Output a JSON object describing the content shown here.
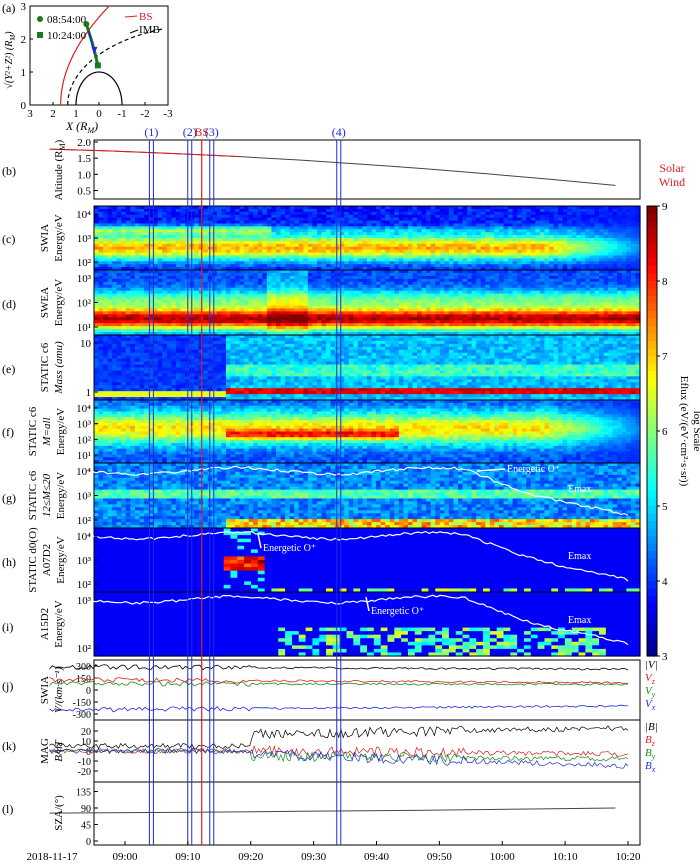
{
  "chart_data": {
    "type": "multi-panel spectrogram / line",
    "panel_letters": [
      "(a)",
      "(b)",
      "(c)",
      "(d)",
      "(e)",
      "(f)",
      "(g)",
      "(h)",
      "(i)",
      "(j)",
      "(k)",
      "(l)"
    ],
    "orbit_panel": {
      "legend": [
        {
          "marker": "circle",
          "label": "08:54:00"
        },
        {
          "marker": "square",
          "label": "10:24:00"
        }
      ],
      "labels": {
        "bs": "BS",
        "imb": "IMB"
      },
      "xlabel": "X (R",
      "xlabel_sub": "M",
      "ylabel": "√(Y²+Z²) (R",
      "ylabel_sub": "M",
      "x_ticks": [
        "3",
        "2",
        "1",
        "0",
        "-1",
        "-2",
        "-3"
      ],
      "y_ticks": [
        "0",
        "1",
        "2",
        "3"
      ],
      "track": [
        [
          0.55,
          2.45
        ],
        [
          0.3,
          1.9
        ],
        [
          0.15,
          1.5
        ],
        [
          0.05,
          1.2
        ]
      ]
    },
    "markers": [
      "(1)",
      "(2)",
      "BS",
      "(3)",
      "(4)"
    ],
    "time_axis": {
      "ticks": [
        "2018-11-17",
        "09:00",
        "09:10",
        "09:20",
        "09:30",
        "09:40",
        "09:50",
        "10:00",
        "10:10",
        "10:20"
      ],
      "tick_minutes": [
        0,
        6,
        16,
        26,
        36,
        46,
        56,
        66,
        76,
        86
      ]
    },
    "marker_minutes": [
      16.2,
      22.3,
      24.2,
      25.8,
      46.0
    ],
    "altitude": {
      "label": "Altitude (R",
      "label_sub": "M",
      "ticks": [
        "2.0",
        "1.5",
        "1.0",
        "0.5"
      ],
      "minutes": [
        0,
        10,
        20,
        30,
        40,
        50,
        60,
        70,
        80,
        90
      ],
      "values": [
        1.78,
        1.72,
        1.64,
        1.55,
        1.44,
        1.31,
        1.17,
        1.01,
        0.84,
        0.66
      ],
      "solar_wind_label": [
        "Solar",
        "Wind"
      ]
    },
    "spectrograms": [
      {
        "label1": "SWIA",
        "label2": "Energy/eV",
        "ticks": [
          "10⁴",
          "10³",
          "10²"
        ]
      },
      {
        "label1": "SWEA",
        "label2": "Energy/eV",
        "ticks": [
          "10³",
          "10²",
          "10¹"
        ]
      },
      {
        "label1": "STATIC c6",
        "label2": "Mass (amu)",
        "ticks": [
          "10",
          "1"
        ]
      },
      {
        "label1": "STATIC c6",
        "label2": "M=all",
        "label3": "Energy/eV",
        "ticks": [
          "10⁴",
          "10³",
          "10²",
          "10¹"
        ]
      },
      {
        "label1": "STATIC c6",
        "label2": "12≤M≤20",
        "label3": "Energy/eV",
        "ticks": [
          "10⁴",
          "10³",
          "10²"
        ],
        "annotations": [
          "Energetic O⁺",
          "Emax"
        ]
      },
      {
        "label1": "STATIC d0(O)",
        "label2": "A07D2",
        "label3": "Energy/eV",
        "ticks": [
          "10⁴",
          "10³",
          "10²"
        ],
        "annotations": [
          "Energetic O⁺",
          "Emax"
        ]
      },
      {
        "label1": "A15D2",
        "label2": "Energy/eV",
        "ticks": [
          "10³",
          "10²"
        ],
        "annotations": [
          "Energetic O⁺",
          "Emax"
        ]
      }
    ],
    "colorbar": {
      "range": [
        3,
        9
      ],
      "ticks": [
        "9",
        "8",
        "7",
        "6",
        "5",
        "4",
        "3"
      ],
      "label": "Eflux (eV/(eV·cm²·s·sr))",
      "sublabel": "log Scale"
    },
    "swia_velocity": {
      "label1": "SWIA",
      "label2": "V/(km·s⁻¹)",
      "ticks": [
        "300",
        "150",
        "0",
        "-150",
        "-300"
      ],
      "series": [
        {
          "name": "|V|",
          "color": "#000000",
          "level": 300
        },
        {
          "name": "Vₓ",
          "color": "#d81f1f",
          "level": 0
        },
        {
          "name": "Vᵧ",
          "color": "#1a8a1a",
          "level": 60
        },
        {
          "name": "Vₓx",
          "color": "#1f2bd8",
          "level": -300
        }
      ],
      "legend": [
        "|V|",
        "V",
        "V",
        "V"
      ],
      "legend_sub": [
        "",
        "z",
        "y",
        "x"
      ]
    },
    "mag": {
      "label1": "MAG",
      "label2": "B/nT",
      "ticks": [
        "20",
        "10",
        "0",
        "-10",
        "-20"
      ],
      "legend": [
        "|B|",
        "B",
        "B",
        "B"
      ],
      "legend_sub": [
        "",
        "z",
        "y",
        "x"
      ],
      "colors": [
        "#000000",
        "#d81f1f",
        "#1a8a1a",
        "#1f2bd8"
      ]
    },
    "sza": {
      "label": "SZA/(°)",
      "ticks": [
        "135",
        "90",
        "45",
        "0"
      ],
      "minutes": [
        0,
        20,
        40,
        60,
        80,
        90
      ],
      "values": [
        76,
        78,
        81,
        84,
        88,
        90
      ]
    }
  }
}
